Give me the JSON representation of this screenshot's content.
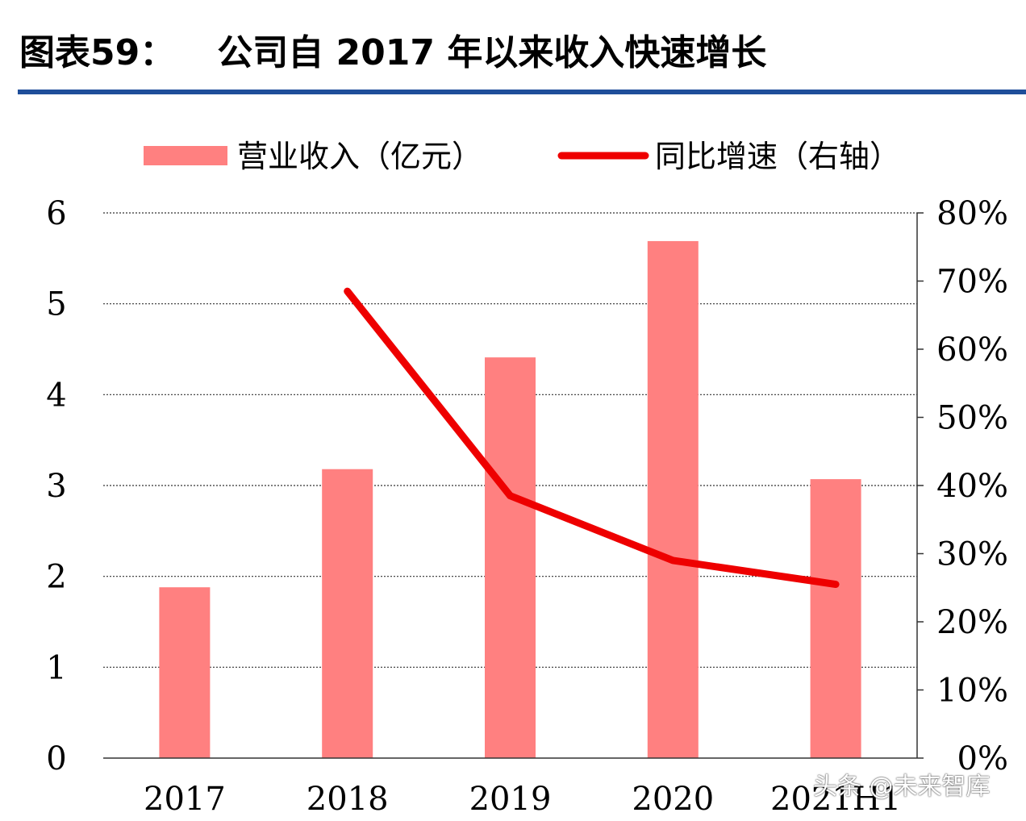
{
  "header": {
    "figure_label": "图表59：",
    "title": "公司自 2017 年以来收入快速增长",
    "rule_color": "#1f4e9a"
  },
  "watermark": "头条 @未来智库",
  "chart_data": {
    "type": "bar",
    "categories": [
      "2017",
      "2018",
      "2019",
      "2020",
      "2021H1"
    ],
    "series": [
      {
        "name": "营业收入（亿元）",
        "type": "bar",
        "axis": "left",
        "color": "#ff8080",
        "values": [
          1.88,
          3.18,
          4.41,
          5.69,
          3.07
        ]
      },
      {
        "name": "同比增速（右轴）",
        "type": "line",
        "axis": "right",
        "color": "#ee0000",
        "values": [
          null,
          0.685,
          0.385,
          0.29,
          0.255
        ]
      }
    ],
    "y_left": {
      "min": 0,
      "max": 6,
      "ticks": [
        0,
        1,
        2,
        3,
        4,
        5,
        6
      ],
      "tick_labels": [
        "0",
        "1",
        "2",
        "3",
        "4",
        "5",
        "6"
      ]
    },
    "y_right": {
      "min": 0,
      "max": 0.8,
      "ticks": [
        0,
        0.1,
        0.2,
        0.3,
        0.4,
        0.5,
        0.6,
        0.7,
        0.8
      ],
      "tick_labels": [
        "0%",
        "10%",
        "20%",
        "30%",
        "40%",
        "50%",
        "60%",
        "70%",
        "80%"
      ]
    },
    "grid": true,
    "legend_position": "top"
  }
}
